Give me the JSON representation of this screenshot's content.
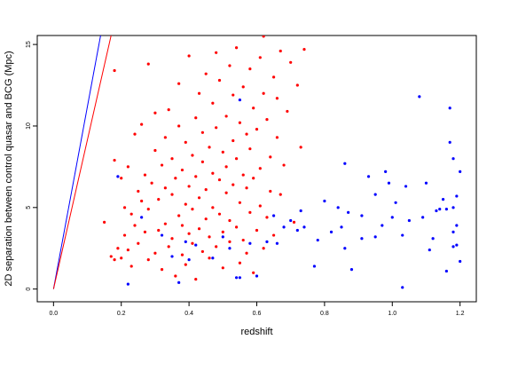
{
  "chart_data": {
    "type": "scatter",
    "xlabel": "redshift",
    "ylabel": "2D separation between control quasar and BCG (Mpc)",
    "xlim": [
      -0.048,
      1.248
    ],
    "ylim": [
      -0.78,
      15.55
    ],
    "xticks": [
      {
        "value": 0,
        "label": "0.0"
      },
      0.2,
      0.4,
      0.6,
      0.8,
      {
        "value": 1,
        "label": "1.0"
      },
      1.2
    ],
    "yticks": [
      0,
      5,
      10,
      15
    ],
    "series": [
      {
        "color": "#ff0000",
        "x": [
          0.15,
          0.17,
          0.18,
          0.18,
          0.18,
          0.19,
          0.2,
          0.2,
          0.21,
          0.21,
          0.22,
          0.22,
          0.23,
          0.23,
          0.24,
          0.24,
          0.25,
          0.25,
          0.26,
          0.26,
          0.27,
          0.27,
          0.28,
          0.28,
          0.28,
          0.29,
          0.3,
          0.3,
          0.3,
          0.31,
          0.31,
          0.32,
          0.32,
          0.33,
          0.33,
          0.33,
          0.34,
          0.34,
          0.35,
          0.35,
          0.35,
          0.36,
          0.36,
          0.37,
          0.37,
          0.37,
          0.38,
          0.38,
          0.38,
          0.39,
          0.39,
          0.39,
          0.4,
          0.4,
          0.4,
          0.41,
          0.41,
          0.41,
          0.42,
          0.42,
          0.42,
          0.43,
          0.43,
          0.43,
          0.44,
          0.44,
          0.44,
          0.45,
          0.45,
          0.45,
          0.46,
          0.46,
          0.46,
          0.47,
          0.47,
          0.47,
          0.48,
          0.48,
          0.48,
          0.49,
          0.49,
          0.49,
          0.5,
          0.5,
          0.5,
          0.51,
          0.51,
          0.51,
          0.52,
          0.52,
          0.52,
          0.53,
          0.53,
          0.53,
          0.54,
          0.54,
          0.54,
          0.55,
          0.55,
          0.55,
          0.56,
          0.56,
          0.56,
          0.57,
          0.57,
          0.57,
          0.58,
          0.58,
          0.58,
          0.59,
          0.59,
          0.59,
          0.6,
          0.6,
          0.61,
          0.61,
          0.61,
          0.62,
          0.62,
          0.62,
          0.63,
          0.63,
          0.64,
          0.64,
          0.65,
          0.65,
          0.66,
          0.66,
          0.67,
          0.67,
          0.68,
          0.69,
          0.7,
          0.71,
          0.72,
          0.73,
          0.74
        ],
        "y": [
          4.1,
          2.0,
          7.9,
          13.4,
          1.8,
          2.5,
          6.8,
          1.9,
          5.0,
          3.3,
          2.4,
          7.5,
          4.6,
          1.4,
          3.9,
          9.5,
          6.0,
          2.8,
          5.4,
          10.1,
          3.5,
          7.0,
          13.8,
          4.9,
          1.8,
          6.5,
          2.2,
          8.5,
          10.8,
          5.5,
          3.6,
          7.6,
          1.2,
          6.2,
          4.0,
          9.3,
          2.6,
          11.0,
          5.8,
          3.1,
          8.0,
          0.8,
          6.8,
          4.5,
          10.0,
          12.6,
          2.1,
          7.3,
          3.9,
          5.2,
          9.0,
          1.5,
          6.3,
          3.4,
          14.3,
          8.2,
          2.8,
          4.9,
          10.5,
          6.9,
          0.6,
          3.7,
          12.0,
          5.6,
          7.8,
          2.3,
          9.6,
          4.3,
          13.2,
          6.1,
          1.9,
          8.7,
          3.2,
          11.4,
          5.0,
          7.1,
          14.5,
          2.6,
          9.9,
          4.6,
          6.7,
          12.8,
          3.5,
          8.4,
          1.3,
          10.6,
          5.9,
          7.5,
          2.9,
          13.7,
          4.2,
          9.1,
          6.4,
          11.9,
          3.8,
          8.0,
          14.8,
          5.3,
          1.6,
          10.2,
          7.0,
          3.0,
          12.4,
          6.2,
          9.5,
          2.2,
          4.7,
          13.5,
          8.6,
          1.0,
          6.8,
          11.1,
          3.6,
          9.8,
          5.1,
          14.2,
          7.4,
          2.5,
          12.0,
          15.5,
          4.4,
          10.4,
          8.1,
          6.0,
          13.0,
          3.3,
          9.3,
          11.7,
          5.8,
          14.6,
          7.6,
          10.9,
          13.9,
          4.1,
          12.5,
          8.7,
          14.7
        ]
      },
      {
        "color": "#0000ff",
        "x": [
          0.22,
          0.19,
          0.26,
          0.35,
          0.37,
          0.39,
          0.42,
          0.47,
          0.5,
          0.52,
          0.55,
          0.55,
          0.58,
          0.63,
          0.65,
          0.66,
          0.68,
          0.7,
          0.72,
          0.73,
          0.74,
          0.77,
          0.78,
          0.8,
          0.82,
          0.84,
          0.85,
          0.86,
          0.86,
          0.87,
          0.88,
          0.91,
          0.91,
          0.93,
          0.95,
          0.95,
          0.97,
          0.98,
          0.99,
          1.0,
          1.01,
          1.03,
          1.03,
          1.04,
          1.05,
          1.08,
          1.09,
          1.1,
          1.11,
          1.12,
          1.13,
          1.14,
          1.15,
          1.16,
          1.16,
          1.17,
          1.17,
          1.18,
          1.18,
          1.18,
          1.18,
          1.19,
          1.19,
          1.2,
          1.2,
          1.19,
          0.54,
          0.6,
          0.32,
          0.4
        ],
        "y": [
          0.3,
          6.9,
          4.4,
          2.0,
          0.4,
          2.9,
          2.7,
          1.9,
          3.2,
          2.5,
          11.6,
          0.7,
          2.8,
          2.9,
          4.5,
          2.8,
          3.8,
          4.2,
          3.6,
          4.8,
          3.8,
          1.4,
          3.0,
          5.4,
          3.5,
          5.0,
          3.8,
          7.7,
          2.5,
          4.7,
          1.2,
          3.1,
          4.5,
          6.9,
          3.2,
          5.8,
          3.9,
          7.2,
          6.5,
          4.4,
          5.3,
          0.1,
          3.3,
          6.3,
          4.2,
          11.8,
          4.4,
          6.5,
          2.4,
          3.1,
          4.8,
          4.9,
          5.5,
          4.9,
          1.1,
          9.0,
          11.1,
          5.0,
          3.5,
          8.0,
          2.6,
          2.7,
          5.7,
          1.7,
          7.2,
          3.9,
          0.7,
          0.8,
          3.3,
          1.8
        ]
      }
    ],
    "lines": [
      {
        "color": "#0000ff",
        "x": [
          0,
          0.139
        ],
        "y": [
          0,
          15.55
        ]
      },
      {
        "color": "#ff0000",
        "x": [
          0,
          0.17
        ],
        "y": [
          0,
          15.55
        ]
      }
    ]
  }
}
